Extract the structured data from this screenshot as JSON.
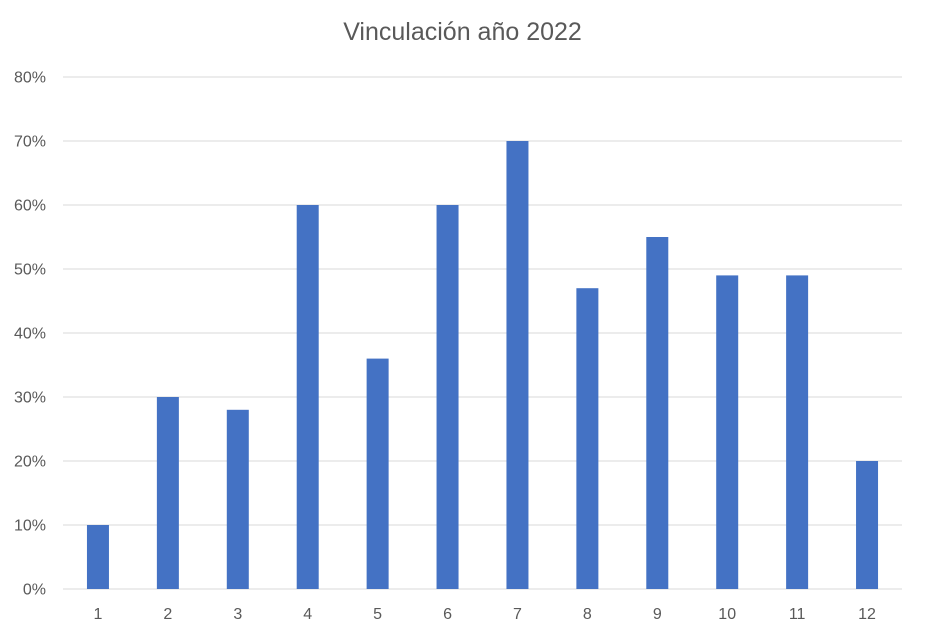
{
  "chart_data": {
    "type": "bar",
    "title": "Vinculación año 2022",
    "xlabel": "",
    "ylabel": "",
    "categories": [
      "1",
      "2",
      "3",
      "4",
      "5",
      "6",
      "7",
      "8",
      "9",
      "10",
      "11",
      "12"
    ],
    "values": [
      10,
      30,
      28,
      60,
      36,
      60,
      70,
      47,
      55,
      49,
      49,
      20
    ],
    "value_unit": "%",
    "ylim": [
      0,
      80
    ],
    "y_ticks": [
      0,
      10,
      20,
      30,
      40,
      50,
      60,
      70,
      80
    ],
    "y_tick_labels": [
      "0%",
      "10%",
      "20%",
      "30%",
      "40%",
      "50%",
      "60%",
      "70%",
      "80%"
    ],
    "grid": true,
    "legend": "none",
    "bar_color": "#4472C4",
    "grid_color": "#D9D9D9",
    "text_color": "#595959"
  }
}
